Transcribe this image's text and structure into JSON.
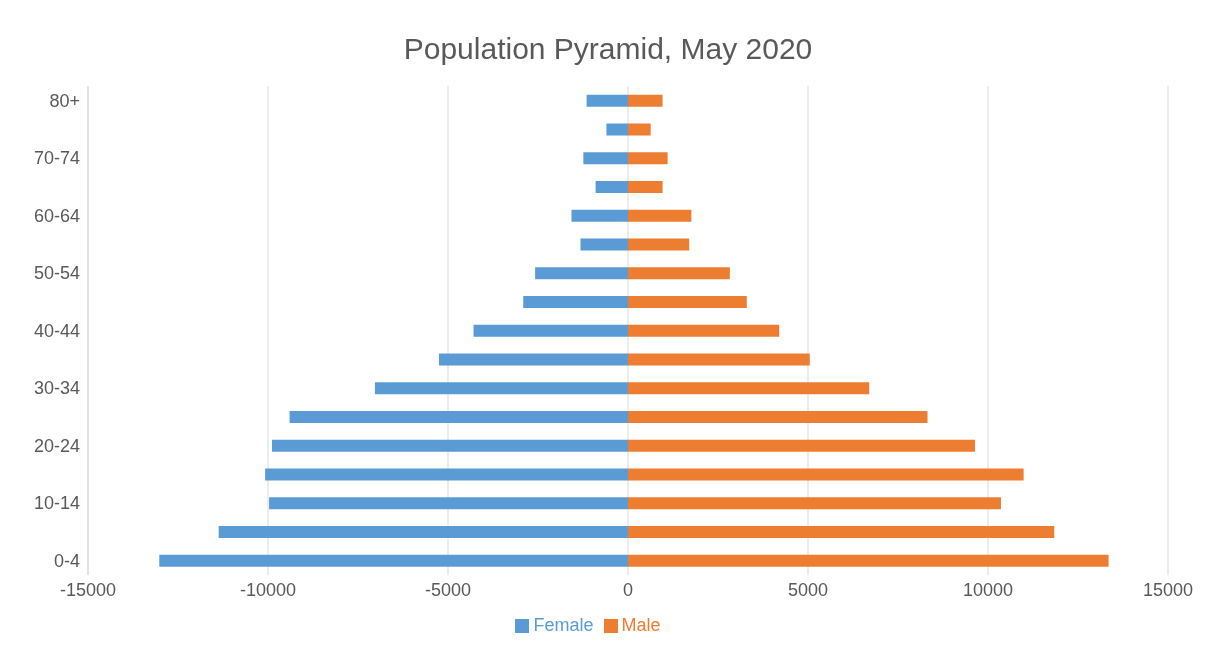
{
  "chart_data": {
    "type": "bar",
    "title": "Population Pyramid, May 2020",
    "orientation": "horizontal",
    "stacked": true,
    "categories": [
      "80+",
      null,
      "70-74",
      null,
      "60-64",
      null,
      "50-54",
      null,
      "40-44",
      null,
      "30-34",
      null,
      "20-24",
      null,
      "10-14",
      null,
      "0-4"
    ],
    "series": [
      {
        "name": "Female",
        "color": "#5b9bd5",
        "values": [
          -1150,
          -600,
          -1240,
          -900,
          -1570,
          -1320,
          -2580,
          -2910,
          -4290,
          -5250,
          -7030,
          -9400,
          -9890,
          -10080,
          -9970,
          -11370,
          -13020
        ]
      },
      {
        "name": "Male",
        "color": "#ed7d31",
        "values": [
          960,
          630,
          1100,
          960,
          1760,
          1700,
          2830,
          3300,
          4200,
          5050,
          6700,
          8320,
          9640,
          10990,
          10360,
          11840,
          13350
        ]
      }
    ],
    "xlim": [
      -15000,
      15000
    ],
    "xticks": [
      -15000,
      -10000,
      -5000,
      0,
      5000,
      10000,
      15000
    ],
    "grid": "x",
    "legend": "bottom"
  }
}
